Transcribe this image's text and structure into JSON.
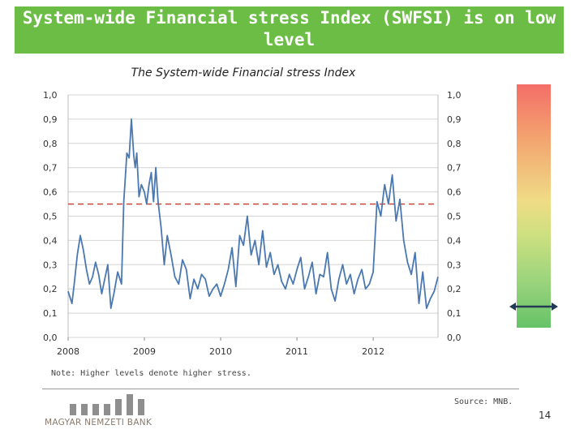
{
  "header": {
    "title": "System-wide Financial stress Index (SWFSI) is on low level"
  },
  "chart_data": {
    "type": "line",
    "title": "The System-wide Financial stress Index",
    "xlabel": "",
    "ylabel": "",
    "ylim": [
      0,
      1
    ],
    "xlim": [
      2008.0,
      2012.85
    ],
    "yticks": [
      "0,0",
      "0,1",
      "0,2",
      "0,3",
      "0,4",
      "0,5",
      "0,6",
      "0,7",
      "0,8",
      "0,9",
      "1,0"
    ],
    "xticks": [
      {
        "label": "2008",
        "value": 2008.0
      },
      {
        "label": "2009",
        "value": 2009.0
      },
      {
        "label": "2010",
        "value": 2010.0
      },
      {
        "label": "2011",
        "value": 2011.0
      },
      {
        "label": "2012",
        "value": 2012.0
      }
    ],
    "grid": "horizontal",
    "reference_line": {
      "value": 0.55,
      "style": "dashed",
      "color": "#c0392b"
    },
    "series": [
      {
        "name": "SWFSI",
        "color": "#4a78b0",
        "x": [
          2008.0,
          2008.05,
          2008.08,
          2008.12,
          2008.16,
          2008.2,
          2008.24,
          2008.28,
          2008.32,
          2008.36,
          2008.4,
          2008.44,
          2008.48,
          2008.52,
          2008.56,
          2008.6,
          2008.65,
          2008.7,
          2008.73,
          2008.77,
          2008.8,
          2008.83,
          2008.86,
          2008.88,
          2008.9,
          2008.93,
          2008.96,
          2009.0,
          2009.03,
          2009.06,
          2009.09,
          2009.12,
          2009.15,
          2009.18,
          2009.22,
          2009.26,
          2009.3,
          2009.35,
          2009.4,
          2009.45,
          2009.5,
          2009.55,
          2009.6,
          2009.65,
          2009.7,
          2009.75,
          2009.8,
          2009.85,
          2009.9,
          2009.95,
          2010.0,
          2010.05,
          2010.1,
          2010.15,
          2010.2,
          2010.25,
          2010.3,
          2010.35,
          2010.4,
          2010.45,
          2010.5,
          2010.55,
          2010.6,
          2010.65,
          2010.7,
          2010.75,
          2010.8,
          2010.85,
          2010.9,
          2010.95,
          2011.0,
          2011.05,
          2011.1,
          2011.15,
          2011.2,
          2011.25,
          2011.3,
          2011.35,
          2011.4,
          2011.45,
          2011.5,
          2011.55,
          2011.6,
          2011.65,
          2011.7,
          2011.75,
          2011.8,
          2011.85,
          2011.9,
          2011.95,
          2012.0,
          2012.05,
          2012.1,
          2012.15,
          2012.2,
          2012.25,
          2012.3,
          2012.35,
          2012.4,
          2012.45,
          2012.5,
          2012.55,
          2012.6,
          2012.65,
          2012.7,
          2012.75,
          2012.8,
          2012.85
        ],
        "values": [
          0.19,
          0.14,
          0.22,
          0.34,
          0.42,
          0.36,
          0.28,
          0.22,
          0.25,
          0.31,
          0.26,
          0.18,
          0.24,
          0.3,
          0.12,
          0.18,
          0.27,
          0.22,
          0.56,
          0.76,
          0.74,
          0.9,
          0.75,
          0.7,
          0.76,
          0.58,
          0.63,
          0.6,
          0.55,
          0.63,
          0.68,
          0.56,
          0.7,
          0.56,
          0.45,
          0.3,
          0.42,
          0.34,
          0.25,
          0.22,
          0.32,
          0.28,
          0.16,
          0.24,
          0.2,
          0.26,
          0.24,
          0.17,
          0.2,
          0.22,
          0.17,
          0.22,
          0.28,
          0.37,
          0.21,
          0.42,
          0.38,
          0.5,
          0.34,
          0.4,
          0.3,
          0.44,
          0.29,
          0.35,
          0.26,
          0.3,
          0.23,
          0.2,
          0.26,
          0.22,
          0.28,
          0.33,
          0.2,
          0.25,
          0.31,
          0.18,
          0.26,
          0.25,
          0.35,
          0.2,
          0.15,
          0.24,
          0.3,
          0.22,
          0.26,
          0.18,
          0.24,
          0.28,
          0.2,
          0.22,
          0.27,
          0.56,
          0.5,
          0.63,
          0.55,
          0.67,
          0.48,
          0.57,
          0.4,
          0.31,
          0.26,
          0.35,
          0.14,
          0.27,
          0.12,
          0.16,
          0.19,
          0.25
        ]
      }
    ]
  },
  "note": "Note: Higher levels denote higher stress.",
  "source": "Source: MNB.",
  "logo": {
    "text": "MAGYAR NEMZETI BANK"
  },
  "page_number": "14",
  "colors": {
    "header": "#6cbd45",
    "line": "#4a78b0",
    "reference": "#c0392b"
  }
}
